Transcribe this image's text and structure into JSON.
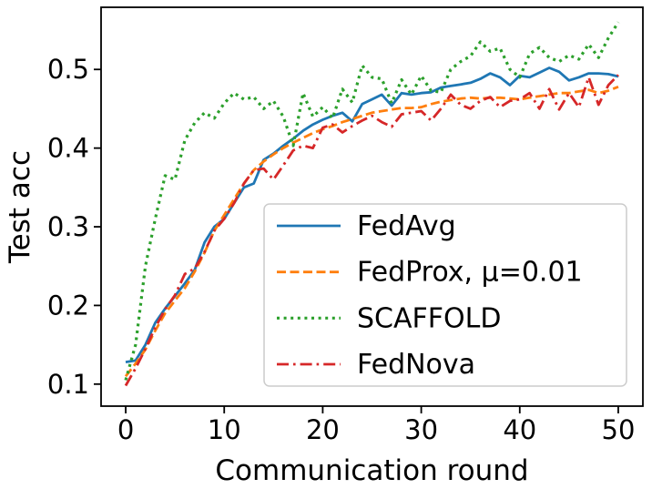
{
  "chart_data": {
    "type": "line",
    "title": "",
    "xlabel": "Communication round",
    "ylabel": "Test acc",
    "xlim": [
      -2.5,
      52.5
    ],
    "ylim": [
      0.072,
      0.579
    ],
    "xticks": [
      0,
      10,
      20,
      30,
      40,
      50
    ],
    "yticks": [
      0.1,
      0.2,
      0.3,
      0.4,
      0.5
    ],
    "grid": false,
    "legend_position": "lower-right-inside",
    "x": [
      0,
      1,
      2,
      3,
      4,
      5,
      6,
      7,
      8,
      9,
      10,
      11,
      12,
      13,
      14,
      15,
      16,
      17,
      18,
      19,
      20,
      21,
      22,
      23,
      24,
      25,
      26,
      27,
      28,
      29,
      30,
      31,
      32,
      33,
      34,
      35,
      36,
      37,
      38,
      39,
      40,
      41,
      42,
      43,
      44,
      45,
      46,
      47,
      48,
      49,
      50
    ],
    "series": [
      {
        "name": "FedAvg",
        "color": "#1f77b4",
        "style": "solid",
        "values": [
          0.128,
          0.13,
          0.15,
          0.178,
          0.196,
          0.212,
          0.228,
          0.245,
          0.28,
          0.3,
          0.31,
          0.33,
          0.35,
          0.355,
          0.385,
          0.393,
          0.403,
          0.412,
          0.422,
          0.43,
          0.436,
          0.441,
          0.445,
          0.434,
          0.456,
          0.462,
          0.468,
          0.454,
          0.47,
          0.468,
          0.47,
          0.471,
          0.477,
          0.479,
          0.481,
          0.483,
          0.488,
          0.495,
          0.49,
          0.48,
          0.492,
          0.49,
          0.496,
          0.502,
          0.497,
          0.486,
          0.49,
          0.495,
          0.495,
          0.494,
          0.491
        ]
      },
      {
        "name": "FedProx, μ=0.01",
        "color": "#ff7f0e",
        "style": "dashed",
        "values": [
          0.11,
          0.126,
          0.144,
          0.168,
          0.19,
          0.206,
          0.222,
          0.243,
          0.267,
          0.295,
          0.315,
          0.335,
          0.355,
          0.372,
          0.383,
          0.392,
          0.4,
          0.407,
          0.413,
          0.419,
          0.424,
          0.428,
          0.433,
          0.437,
          0.441,
          0.445,
          0.447,
          0.449,
          0.451,
          0.451,
          0.452,
          0.456,
          0.459,
          0.461,
          0.463,
          0.464,
          0.463,
          0.464,
          0.464,
          0.463,
          0.462,
          0.464,
          0.466,
          0.468,
          0.47,
          0.47,
          0.472,
          0.474,
          0.47,
          0.473,
          0.478
        ]
      },
      {
        "name": "SCAFFOLD",
        "color": "#2ca02c",
        "style": "dotted",
        "values": [
          0.105,
          0.15,
          0.25,
          0.31,
          0.365,
          0.36,
          0.41,
          0.432,
          0.445,
          0.438,
          0.457,
          0.47,
          0.462,
          0.465,
          0.45,
          0.46,
          0.44,
          0.403,
          0.47,
          0.44,
          0.452,
          0.438,
          0.475,
          0.458,
          0.505,
          0.49,
          0.488,
          0.457,
          0.487,
          0.468,
          0.492,
          0.473,
          0.471,
          0.5,
          0.51,
          0.517,
          0.535,
          0.523,
          0.527,
          0.5,
          0.49,
          0.52,
          0.528,
          0.515,
          0.51,
          0.518,
          0.513,
          0.532,
          0.515,
          0.54,
          0.56
        ]
      },
      {
        "name": "FedNova",
        "color": "#d62728",
        "style": "dashdot",
        "values": [
          0.098,
          0.12,
          0.145,
          0.172,
          0.195,
          0.213,
          0.24,
          0.247,
          0.268,
          0.295,
          0.31,
          0.33,
          0.355,
          0.372,
          0.374,
          0.36,
          0.378,
          0.397,
          0.403,
          0.4,
          0.426,
          0.43,
          0.42,
          0.428,
          0.435,
          0.441,
          0.433,
          0.427,
          0.443,
          0.445,
          0.447,
          0.435,
          0.45,
          0.468,
          0.455,
          0.45,
          0.46,
          0.465,
          0.452,
          0.46,
          0.462,
          0.47,
          0.45,
          0.475,
          0.449,
          0.47,
          0.452,
          0.49,
          0.455,
          0.48,
          0.493
        ]
      }
    ]
  }
}
